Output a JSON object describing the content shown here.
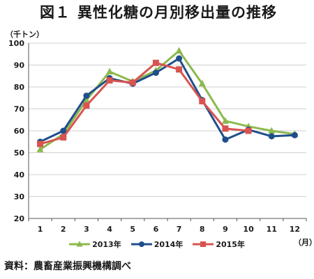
{
  "title": {
    "prefix": "図１",
    "text": "異性化糖の月別移出量の推移"
  },
  "source_note": "資料：農畜産業振興機構調べ",
  "chart_data": {
    "type": "line",
    "title": "図１ 異性化糖の月別移出量の推移",
    "y_unit": "（千トン）",
    "x_unit": "（月）",
    "ylim": [
      20,
      100
    ],
    "yticks": [
      20,
      30,
      40,
      50,
      60,
      70,
      80,
      90,
      100
    ],
    "categories": [
      "1",
      "2",
      "3",
      "4",
      "5",
      "6",
      "7",
      "8",
      "9",
      "10",
      "11",
      "12"
    ],
    "grid": true,
    "legend_position": "bottom",
    "series": [
      {
        "name": "2013年",
        "color": "#8cb94f",
        "marker": "triangle",
        "values": [
          51.5,
          58.5,
          74.0,
          87.0,
          82.5,
          87.5,
          96.5,
          81.5,
          64.5,
          62.0,
          60.0,
          58.5
        ]
      },
      {
        "name": "2014年",
        "color": "#1f4e8c",
        "marker": "circle",
        "values": [
          55.0,
          60.0,
          76.0,
          84.0,
          81.5,
          86.5,
          93.0,
          74.0,
          56.0,
          60.5,
          57.5,
          58.0
        ]
      },
      {
        "name": "2015年",
        "color": "#d9534f",
        "marker": "square",
        "values": [
          54.0,
          57.0,
          71.5,
          83.0,
          82.0,
          91.0,
          88.0,
          73.5,
          61.0,
          60.0,
          null,
          null
        ]
      }
    ]
  }
}
